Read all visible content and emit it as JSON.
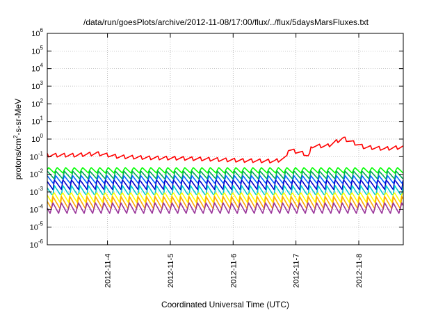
{
  "chart_data": {
    "type": "line",
    "title": "/data/run/goesPlots/archive/2012-11-08/17:00/flux/../flux/5daysMarsFluxes.txt",
    "xlabel": "Coordinated Universal Time (UTC)",
    "ylabel": "protons/cm²-s-sr-MeV",
    "yscale": "log",
    "ylim": [
      1e-06,
      1000000.0
    ],
    "xlim": [
      "2012-11-03T01:00",
      "2012-11-08T17:00"
    ],
    "y_ticks": [
      {
        "mant": "10",
        "exp": "-6",
        "value": -6
      },
      {
        "mant": "10",
        "exp": "-5",
        "value": -5
      },
      {
        "mant": "10",
        "exp": "-4",
        "value": -4
      },
      {
        "mant": "10",
        "exp": "-3",
        "value": -3
      },
      {
        "mant": "10",
        "exp": "-2",
        "value": -2
      },
      {
        "mant": "10",
        "exp": "-1",
        "value": -1
      },
      {
        "mant": "10",
        "exp": "0",
        "value": 0
      },
      {
        "mant": "10",
        "exp": "1",
        "value": 1
      },
      {
        "mant": "10",
        "exp": "2",
        "value": 2
      },
      {
        "mant": "10",
        "exp": "3",
        "value": 3
      },
      {
        "mant": "10",
        "exp": "4",
        "value": 4
      },
      {
        "mant": "10",
        "exp": "5",
        "value": 5
      },
      {
        "mant": "10",
        "exp": "6",
        "value": 6
      }
    ],
    "x_ticks": [
      {
        "label": "2012-11-4",
        "value": "2012-11-04T00:00"
      },
      {
        "label": "2012-11-5",
        "value": "2012-11-05T00:00"
      },
      {
        "label": "2012-11-6",
        "value": "2012-11-06T00:00"
      },
      {
        "label": "2012-11-7",
        "value": "2012-11-07T00:00"
      },
      {
        "label": "2012-11-8",
        "value": "2012-11-08T00:00"
      }
    ],
    "grid": true,
    "legend": "none",
    "series": [
      {
        "color": "#ff0000",
        "keypoints": [
          {
            "x": "2012-11-03T01:00",
            "y": 0.12
          },
          {
            "x": "2012-11-03T12:00",
            "y": 0.12
          },
          {
            "x": "2012-11-03T20:00",
            "y": 0.15
          },
          {
            "x": "2012-11-04T04:00",
            "y": 0.1
          },
          {
            "x": "2012-11-04T16:00",
            "y": 0.085
          },
          {
            "x": "2012-11-05T04:00",
            "y": 0.08
          },
          {
            "x": "2012-11-05T16:00",
            "y": 0.07
          },
          {
            "x": "2012-11-06T04:00",
            "y": 0.06
          },
          {
            "x": "2012-11-06T16:00",
            "y": 0.055
          },
          {
            "x": "2012-11-06T20:00",
            "y": 0.08
          },
          {
            "x": "2012-11-06T21:00",
            "y": 0.25
          },
          {
            "x": "2012-11-07T03:00",
            "y": 0.15
          },
          {
            "x": "2012-11-07T05:00",
            "y": 0.1
          },
          {
            "x": "2012-11-07T06:00",
            "y": 0.4
          },
          {
            "x": "2012-11-07T12:00",
            "y": 0.4
          },
          {
            "x": "2012-11-07T18:00",
            "y": 1.1
          },
          {
            "x": "2012-11-08T02:00",
            "y": 0.35
          },
          {
            "x": "2012-11-08T10:00",
            "y": 0.28
          },
          {
            "x": "2012-11-08T17:00",
            "y": 0.35
          }
        ],
        "ripple": 0.6
      },
      {
        "color": "#00ff00",
        "base": 0.017,
        "ripple": 2.5
      },
      {
        "color": "#00aa55",
        "base": 0.009,
        "ripple": 3.0
      },
      {
        "color": "#0066ff",
        "base": 0.005,
        "ripple": 3.5
      },
      {
        "color": "#0000cc",
        "base": 0.0025,
        "ripple": 4.0
      },
      {
        "color": "#00cccc",
        "base": 0.0012,
        "ripple": 4.5
      },
      {
        "color": "#ffff00",
        "base": 0.0005,
        "ripple": 5.0
      },
      {
        "color": "#ffaa00",
        "base": 0.00025,
        "ripple": 5.5
      },
      {
        "color": "#993399",
        "base": 0.00012,
        "ripple": 6.0
      }
    ],
    "period_hours": 3.25
  }
}
